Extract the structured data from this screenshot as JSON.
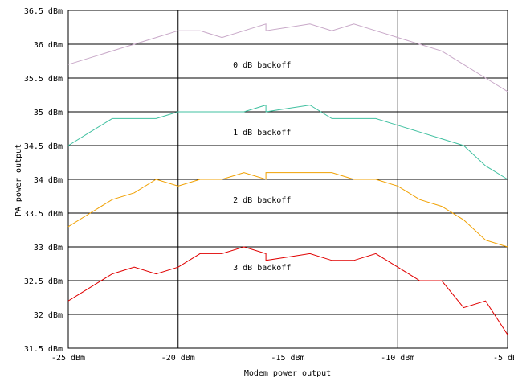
{
  "chart_data": {
    "type": "line",
    "title": "",
    "xlabel": "Modem power output",
    "ylabel": "PA power output",
    "xlim": [
      -25,
      -5
    ],
    "ylim": [
      31.5,
      36.5
    ],
    "grid": true,
    "x_ticks": [
      -25,
      -20,
      -15,
      -10,
      -5
    ],
    "x_tick_labels": [
      "-25 dBm",
      "-20 dBm",
      "-15 dBm",
      "-10 dBm",
      "-5 dBm"
    ],
    "y_ticks": [
      31.5,
      32,
      32.5,
      33,
      33.5,
      34,
      34.5,
      35,
      35.5,
      36,
      36.5
    ],
    "y_tick_labels": [
      "31.5 dBm",
      "32 dBm",
      "32.5 dBm",
      "33 dBm",
      "33.5 dBm",
      "34 dBm",
      "34.5 dBm",
      "35 dBm",
      "35.5 dBm",
      "36 dBm",
      "36.5 dBm"
    ],
    "series": [
      {
        "color": "#c8a8c8",
        "points": [
          [
            -25,
            35.7
          ],
          [
            -24,
            35.8
          ],
          [
            -23,
            35.9
          ],
          [
            -22,
            36.0
          ],
          [
            -21,
            36.1
          ],
          [
            -20,
            36.2
          ],
          [
            -19,
            36.2
          ],
          [
            -18,
            36.1
          ],
          [
            -17,
            36.2
          ],
          [
            -16,
            36.3
          ],
          [
            -16,
            36.2
          ],
          [
            -15,
            36.25
          ],
          [
            -14,
            36.3
          ],
          [
            -13,
            36.2
          ],
          [
            -12,
            36.3
          ],
          [
            -11,
            36.2
          ],
          [
            -10,
            36.1
          ],
          [
            -9,
            36.0
          ],
          [
            -8,
            35.9
          ],
          [
            -7,
            35.7
          ],
          [
            -6,
            35.5
          ],
          [
            -5,
            35.3
          ]
        ]
      },
      {
        "color": "#40c0a0",
        "points": [
          [
            -25,
            34.5
          ],
          [
            -24,
            34.7
          ],
          [
            -23,
            34.9
          ],
          [
            -22,
            34.9
          ],
          [
            -21,
            34.9
          ],
          [
            -20,
            35.0
          ],
          [
            -19,
            35.0
          ],
          [
            -18,
            35.0
          ],
          [
            -17,
            35.0
          ],
          [
            -16,
            35.1
          ],
          [
            -16,
            35.0
          ],
          [
            -15,
            35.05
          ],
          [
            -14,
            35.1
          ],
          [
            -13,
            34.9
          ],
          [
            -12,
            34.9
          ],
          [
            -11,
            34.9
          ],
          [
            -10,
            34.8
          ],
          [
            -9,
            34.7
          ],
          [
            -8,
            34.6
          ],
          [
            -7,
            34.5
          ],
          [
            -6,
            34.2
          ],
          [
            -5,
            34.0
          ]
        ]
      },
      {
        "color": "#f0a000",
        "points": [
          [
            -25,
            33.3
          ],
          [
            -24,
            33.5
          ],
          [
            -23,
            33.7
          ],
          [
            -22,
            33.8
          ],
          [
            -21,
            34.0
          ],
          [
            -20,
            33.9
          ],
          [
            -19,
            34.0
          ],
          [
            -18,
            34.0
          ],
          [
            -17,
            34.1
          ],
          [
            -16,
            34.0
          ],
          [
            -16,
            34.1
          ],
          [
            -15,
            34.1
          ],
          [
            -14,
            34.1
          ],
          [
            -13,
            34.1
          ],
          [
            -12,
            34.0
          ],
          [
            -11,
            34.0
          ],
          [
            -10,
            33.9
          ],
          [
            -9,
            33.7
          ],
          [
            -8,
            33.6
          ],
          [
            -7,
            33.4
          ],
          [
            -6,
            33.1
          ],
          [
            -5,
            33.0
          ]
        ]
      },
      {
        "color": "#e00000",
        "points": [
          [
            -25,
            32.2
          ],
          [
            -24,
            32.4
          ],
          [
            -23,
            32.6
          ],
          [
            -22,
            32.7
          ],
          [
            -21,
            32.6
          ],
          [
            -20,
            32.7
          ],
          [
            -19,
            32.9
          ],
          [
            -18,
            32.9
          ],
          [
            -17,
            33.0
          ],
          [
            -16,
            32.9
          ],
          [
            -16,
            32.8
          ],
          [
            -15,
            32.85
          ],
          [
            -14,
            32.9
          ],
          [
            -13,
            32.8
          ],
          [
            -12,
            32.8
          ],
          [
            -11,
            32.9
          ],
          [
            -10,
            32.7
          ],
          [
            -9,
            32.5
          ],
          [
            -8,
            32.5
          ],
          [
            -7,
            32.1
          ],
          [
            -6,
            32.2
          ],
          [
            -5,
            31.7
          ]
        ]
      }
    ],
    "annotations": [
      {
        "text": "0 dB backoff",
        "x": -17.5,
        "y": 35.7
      },
      {
        "text": "1 dB backoff",
        "x": -17.5,
        "y": 34.7
      },
      {
        "text": "2 dB backoff",
        "x": -17.5,
        "y": 33.7
      },
      {
        "text": "3 dB backoff",
        "x": -17.5,
        "y": 32.7
      }
    ]
  }
}
